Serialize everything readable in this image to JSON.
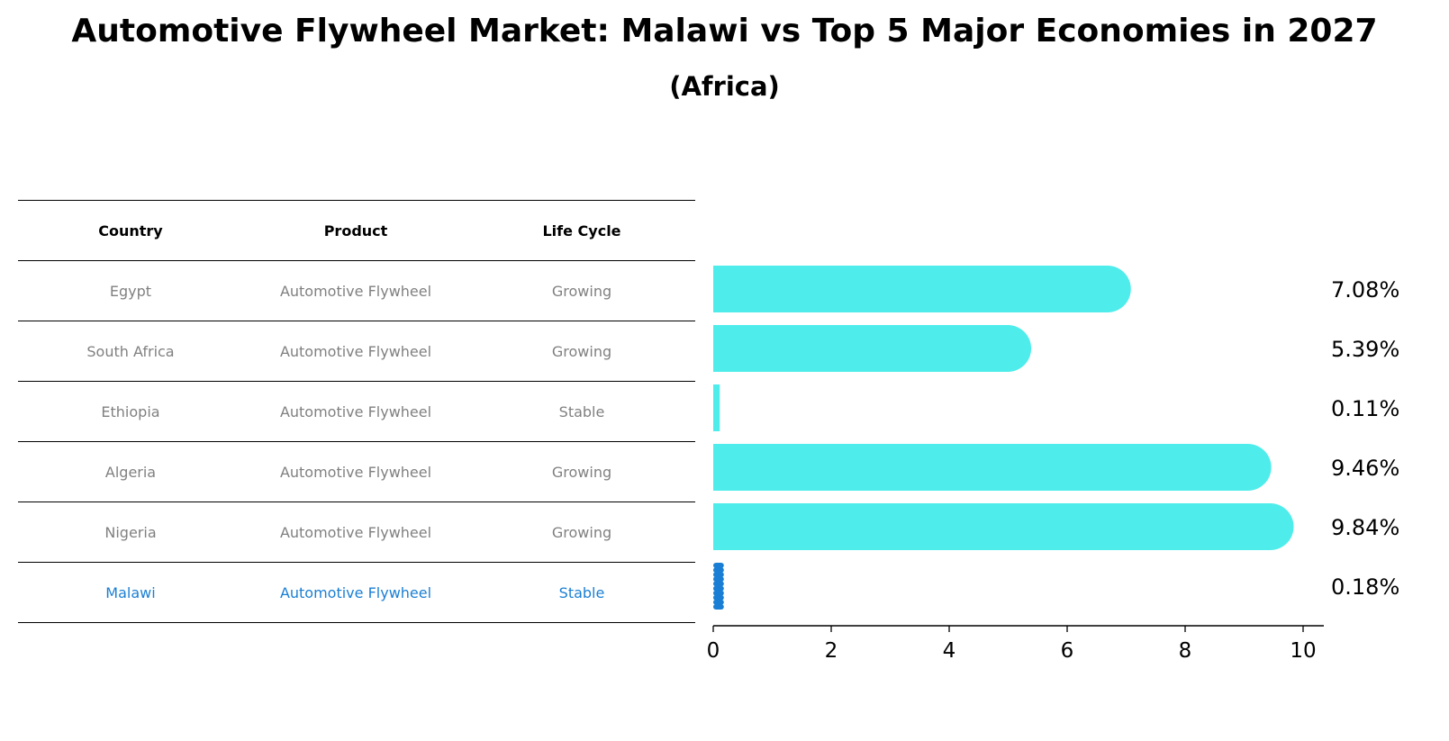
{
  "title": "Automotive Flywheel Market: Malawi vs Top 5 Major Economies in 2027",
  "subtitle": "(Africa)",
  "table": {
    "headers": [
      "Country",
      "Product",
      "Life Cycle"
    ],
    "rows": [
      [
        "Egypt",
        "Automotive Flywheel",
        "Growing"
      ],
      [
        "South Africa",
        "Automotive Flywheel",
        "Growing"
      ],
      [
        "Ethiopia",
        "Automotive Flywheel",
        "Stable"
      ],
      [
        "Algeria",
        "Automotive Flywheel",
        "Growing"
      ],
      [
        "Nigeria",
        "Automotive Flywheel",
        "Growing"
      ],
      [
        "Malawi",
        "Automotive Flywheel",
        "Stable"
      ]
    ]
  },
  "colors": {
    "bar": "#4eedeb",
    "highlight": "#1a7fd4",
    "muted_text": "#808080"
  },
  "chart_data": {
    "type": "bar",
    "orientation": "horizontal",
    "title": "Automotive Flywheel Market: Malawi vs Top 5 Major Economies in 2027",
    "subtitle": "(Africa)",
    "categories": [
      "Egypt",
      "South Africa",
      "Ethiopia",
      "Algeria",
      "Nigeria",
      "Malawi"
    ],
    "values": [
      7.08,
      5.39,
      0.11,
      9.46,
      9.84,
      0.18
    ],
    "value_labels": [
      "7.08%",
      "5.39%",
      "0.11%",
      "9.46%",
      "9.84%",
      "0.18%"
    ],
    "highlight": "Malawi",
    "xlim": [
      0,
      10.3
    ],
    "xticks": [
      0,
      2,
      4,
      6,
      8,
      10
    ],
    "xlabel": "",
    "ylabel": "",
    "grid": false
  }
}
